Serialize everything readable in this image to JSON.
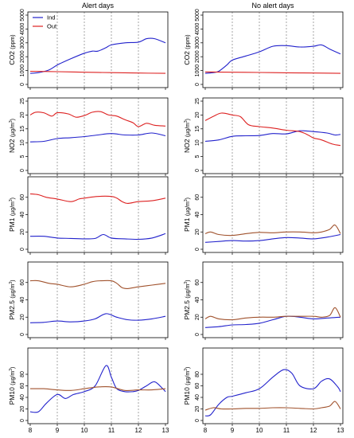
{
  "figure": {
    "column_titles": [
      "Alert days",
      "No alert days"
    ],
    "legend": [
      {
        "label": "Ind",
        "color": "#2222cc"
      },
      {
        "label": "Out",
        "color": "#dd2222"
      }
    ]
  },
  "colors": {
    "ind": "#2222cc",
    "out": "#dd2222",
    "out_brown": "#a0522d",
    "grid": "#808080",
    "frame": "#000000"
  },
  "chart_data": [
    {
      "type": "line",
      "column": "Alert days",
      "ylabel_main": "CO2",
      "ylabel_unit": "(ppm)",
      "ylabel_sup": "",
      "ylim": [
        0,
        5000
      ],
      "yticks": [
        0,
        1000,
        2000,
        3000,
        4000,
        5000
      ],
      "xlim": [
        8,
        13
      ],
      "xticks": [
        8,
        9,
        10,
        11,
        12,
        13
      ],
      "grid_x": true,
      "out_color": "red",
      "series": [
        {
          "name": "Ind",
          "x": [
            8,
            8.3,
            8.7,
            9,
            9.5,
            10,
            10.3,
            10.5,
            10.8,
            11,
            11.5,
            12,
            12.3,
            12.6,
            13
          ],
          "values": [
            800,
            850,
            1050,
            1400,
            1850,
            2250,
            2400,
            2400,
            2650,
            2850,
            3000,
            3050,
            3300,
            3300,
            3000
          ]
        },
        {
          "name": "Out",
          "x": [
            8,
            9,
            10,
            11,
            12,
            13
          ],
          "values": [
            950,
            920,
            880,
            850,
            820,
            800
          ]
        }
      ]
    },
    {
      "type": "line",
      "column": "No alert days",
      "ylabel_main": "CO2",
      "ylabel_unit": "(ppm)",
      "ylabel_sup": "",
      "ylim": [
        0,
        5000
      ],
      "yticks": [
        0,
        1000,
        2000,
        3000,
        4000,
        5000
      ],
      "xlim": [
        8,
        13
      ],
      "xticks": [
        8,
        9,
        10,
        11,
        12,
        13
      ],
      "grid_x": true,
      "out_color": "red",
      "series": [
        {
          "name": "Ind",
          "x": [
            8,
            8.3,
            8.5,
            8.8,
            9,
            9.5,
            10,
            10.5,
            11,
            11.5,
            12,
            12.3,
            12.6,
            13
          ],
          "values": [
            800,
            850,
            950,
            1400,
            1750,
            2050,
            2350,
            2750,
            2800,
            2700,
            2750,
            2850,
            2550,
            2200
          ]
        },
        {
          "name": "Out",
          "x": [
            8,
            9,
            10,
            11,
            12,
            13
          ],
          "values": [
            900,
            880,
            860,
            840,
            820,
            800
          ]
        }
      ]
    },
    {
      "type": "line",
      "column": "Alert days",
      "ylabel_main": "NO2",
      "ylabel_unit": "(µg/m",
      "ylabel_sup": "3",
      "ylim": [
        0,
        25
      ],
      "yticks": [
        0,
        5,
        10,
        15,
        20,
        25
      ],
      "xlim": [
        8,
        13
      ],
      "xticks": [
        8,
        9,
        10,
        11,
        12,
        13
      ],
      "grid_x": true,
      "out_color": "red",
      "series": [
        {
          "name": "Ind",
          "x": [
            8,
            8.5,
            9,
            9.5,
            10,
            10.5,
            11,
            11.5,
            12,
            12.5,
            13
          ],
          "values": [
            10.3,
            10.5,
            11.5,
            11.8,
            12.2,
            12.8,
            13.3,
            12.8,
            12.8,
            13.5,
            12.5
          ]
        },
        {
          "name": "Out",
          "x": [
            8,
            8.2,
            8.5,
            8.8,
            9,
            9.4,
            9.7,
            10,
            10.3,
            10.6,
            10.9,
            11.2,
            11.5,
            11.8,
            12,
            12.3,
            12.6,
            13
          ],
          "values": [
            20,
            21,
            20.8,
            19.6,
            20.8,
            20.4,
            19.2,
            19.8,
            21,
            21.2,
            20,
            19.6,
            18.3,
            17.2,
            15.8,
            17,
            16.3,
            16
          ]
        }
      ]
    },
    {
      "type": "line",
      "column": "No alert days",
      "ylabel_main": "NO2",
      "ylabel_unit": "(µg/m",
      "ylabel_sup": "3",
      "ylim": [
        0,
        25
      ],
      "yticks": [
        0,
        5,
        10,
        15,
        20,
        25
      ],
      "xlim": [
        8,
        13
      ],
      "xticks": [
        8,
        9,
        10,
        11,
        12,
        13
      ],
      "grid_x": true,
      "out_color": "red",
      "series": [
        {
          "name": "Ind",
          "x": [
            8,
            8.5,
            9,
            9.5,
            10,
            10.5,
            11,
            11.5,
            12,
            12.5,
            12.8,
            13
          ],
          "values": [
            10.5,
            11,
            12.3,
            12.5,
            12.6,
            13.3,
            13.2,
            14.3,
            14,
            13.5,
            12.8,
            13
          ]
        },
        {
          "name": "Out",
          "x": [
            8,
            8.3,
            8.6,
            9,
            9.3,
            9.6,
            10,
            10.5,
            11,
            11.5,
            11.8,
            12,
            12.3,
            12.7,
            13
          ],
          "values": [
            18,
            19.5,
            20.7,
            20,
            19.4,
            16.5,
            15.8,
            15.3,
            14.5,
            14,
            12.8,
            11.7,
            11,
            9.5,
            9
          ]
        }
      ]
    },
    {
      "type": "line",
      "column": "Alert days",
      "ylabel_main": "PM1",
      "ylabel_unit": "(µg/m",
      "ylabel_sup": "3",
      "ylim": [
        0,
        80
      ],
      "yticks": [
        0,
        20,
        40,
        60
      ],
      "xlim": [
        8,
        13
      ],
      "xticks": [
        8,
        9,
        10,
        11,
        12,
        13
      ],
      "grid_x": true,
      "out_color": "red",
      "series": [
        {
          "name": "Ind",
          "x": [
            8,
            8.5,
            9,
            9.5,
            10,
            10.4,
            10.7,
            11,
            11.5,
            12,
            12.5,
            13
          ],
          "values": [
            15,
            15,
            13,
            12.5,
            12,
            12.5,
            17,
            13,
            12,
            11.5,
            13,
            18
          ]
        },
        {
          "name": "Out",
          "x": [
            8,
            8.3,
            8.6,
            9,
            9.5,
            9.8,
            10,
            10.5,
            11,
            11.2,
            11.4,
            11.6,
            12,
            12.5,
            13
          ],
          "values": [
            64,
            63,
            60,
            58,
            55,
            58,
            59,
            61,
            61,
            59,
            55,
            53,
            55,
            56,
            59
          ]
        }
      ]
    },
    {
      "type": "line",
      "column": "No alert days",
      "ylabel_main": "PM1",
      "ylabel_unit": "(µg/m",
      "ylabel_sup": "3",
      "ylim": [
        0,
        80
      ],
      "yticks": [
        0,
        20,
        40,
        60
      ],
      "xlim": [
        8,
        13
      ],
      "xticks": [
        8,
        9,
        10,
        11,
        12,
        13
      ],
      "grid_x": true,
      "out_color": "brown",
      "series": [
        {
          "name": "Ind",
          "x": [
            8,
            8.5,
            9,
            9.5,
            10,
            10.5,
            11,
            11.5,
            12,
            12.5,
            13
          ],
          "values": [
            8,
            9,
            10,
            9.5,
            10,
            12,
            13.5,
            13,
            12,
            14,
            17
          ]
        },
        {
          "name": "Out",
          "x": [
            8,
            8.2,
            8.5,
            9,
            9.5,
            10,
            10.5,
            11,
            11.5,
            12,
            12.3,
            12.6,
            12.8,
            13
          ],
          "values": [
            18,
            20,
            17,
            16,
            18,
            19.5,
            19,
            20,
            20,
            19,
            20,
            23,
            28,
            18
          ]
        }
      ]
    },
    {
      "type": "line",
      "column": "Alert days",
      "ylabel_main": "PM2.5",
      "ylabel_unit": "(µg/m",
      "ylabel_sup": "3",
      "ylim": [
        0,
        80
      ],
      "yticks": [
        0,
        20,
        40,
        60
      ],
      "xlim": [
        8,
        13
      ],
      "xticks": [
        8,
        9,
        10,
        11,
        12,
        13
      ],
      "grid_x": true,
      "out_color": "brown",
      "series": [
        {
          "name": "Ind",
          "x": [
            8,
            8.5,
            9,
            9.5,
            10,
            10.4,
            10.8,
            11.2,
            11.6,
            12,
            12.5,
            13
          ],
          "values": [
            13.5,
            14,
            15.5,
            14.5,
            15.5,
            18,
            24,
            20,
            17,
            16.5,
            18,
            21
          ]
        },
        {
          "name": "Out",
          "x": [
            8,
            8.3,
            8.7,
            9,
            9.5,
            10,
            10.3,
            10.6,
            11,
            11.2,
            11.4,
            11.6,
            12,
            12.5,
            13
          ],
          "values": [
            62,
            62,
            59,
            58,
            55,
            58,
            61,
            62,
            62,
            59,
            54,
            53,
            55,
            57,
            59
          ]
        }
      ]
    },
    {
      "type": "line",
      "column": "No alert days",
      "ylabel_main": "PM2.5",
      "ylabel_unit": "(µg/m",
      "ylabel_sup": "3",
      "ylim": [
        0,
        80
      ],
      "yticks": [
        0,
        20,
        40,
        60
      ],
      "xlim": [
        8,
        13
      ],
      "xticks": [
        8,
        9,
        10,
        11,
        12,
        13
      ],
      "grid_x": true,
      "out_color": "brown",
      "series": [
        {
          "name": "Ind",
          "x": [
            8,
            8.5,
            9,
            9.5,
            10,
            10.5,
            11,
            11.5,
            12,
            12.5,
            13
          ],
          "values": [
            8,
            9,
            11,
            11.5,
            13,
            17,
            21,
            20,
            18,
            19,
            20
          ]
        },
        {
          "name": "Out",
          "x": [
            8,
            8.2,
            8.5,
            9,
            9.5,
            10,
            10.5,
            11,
            11.5,
            12,
            12.3,
            12.6,
            12.8,
            13
          ],
          "values": [
            18,
            21,
            18,
            17,
            19,
            20,
            20,
            21,
            21,
            21,
            20,
            22,
            31,
            20
          ]
        }
      ]
    },
    {
      "type": "line",
      "column": "Alert days",
      "ylabel_main": "PM10",
      "ylabel_unit": "(µg/m",
      "ylabel_sup": "3",
      "ylim": [
        0,
        120
      ],
      "yticks": [
        0,
        20,
        40,
        60,
        80
      ],
      "xlim": [
        8,
        13
      ],
      "xticks": [
        8,
        9,
        10,
        11,
        12,
        13
      ],
      "grid_x": true,
      "out_color": "brown",
      "series": [
        {
          "name": "Ind",
          "x": [
            8,
            8.3,
            8.6,
            9,
            9.3,
            9.6,
            10,
            10.4,
            10.8,
            11,
            11.2,
            11.5,
            11.8,
            12,
            12.3,
            12.6,
            12.9,
            13
          ],
          "values": [
            15,
            15,
            30,
            45,
            38,
            45,
            50,
            60,
            95,
            75,
            55,
            50,
            50,
            52,
            60,
            67,
            55,
            50
          ]
        },
        {
          "name": "Out",
          "x": [
            8,
            8.5,
            9,
            9.5,
            10,
            10.5,
            11,
            11.5,
            12,
            12.5,
            13
          ],
          "values": [
            55,
            55,
            53,
            52,
            55,
            58,
            58,
            52,
            53,
            53,
            55
          ]
        }
      ]
    },
    {
      "type": "line",
      "column": "No alert days",
      "ylabel_main": "PM10",
      "ylabel_unit": "(µg/m",
      "ylabel_sup": "3",
      "ylim": [
        0,
        120
      ],
      "yticks": [
        0,
        20,
        40,
        60,
        80
      ],
      "xlim": [
        8,
        13
      ],
      "xticks": [
        8,
        9,
        10,
        11,
        12,
        13
      ],
      "grid_x": true,
      "out_color": "brown",
      "series": [
        {
          "name": "Ind",
          "x": [
            8,
            8.2,
            8.5,
            8.8,
            9,
            9.5,
            10,
            10.5,
            10.9,
            11.2,
            11.5,
            12,
            12.3,
            12.6,
            12.9,
            13
          ],
          "values": [
            8,
            10,
            28,
            40,
            42,
            48,
            55,
            75,
            88,
            82,
            60,
            55,
            68,
            72,
            58,
            50
          ]
        },
        {
          "name": "Out",
          "x": [
            8,
            8.3,
            8.6,
            9,
            9.5,
            10,
            10.5,
            11,
            11.5,
            12,
            12.3,
            12.6,
            12.8,
            13
          ],
          "values": [
            18,
            22,
            20,
            20,
            21,
            21,
            22,
            22,
            21,
            20,
            22,
            25,
            33,
            20
          ]
        }
      ]
    }
  ]
}
